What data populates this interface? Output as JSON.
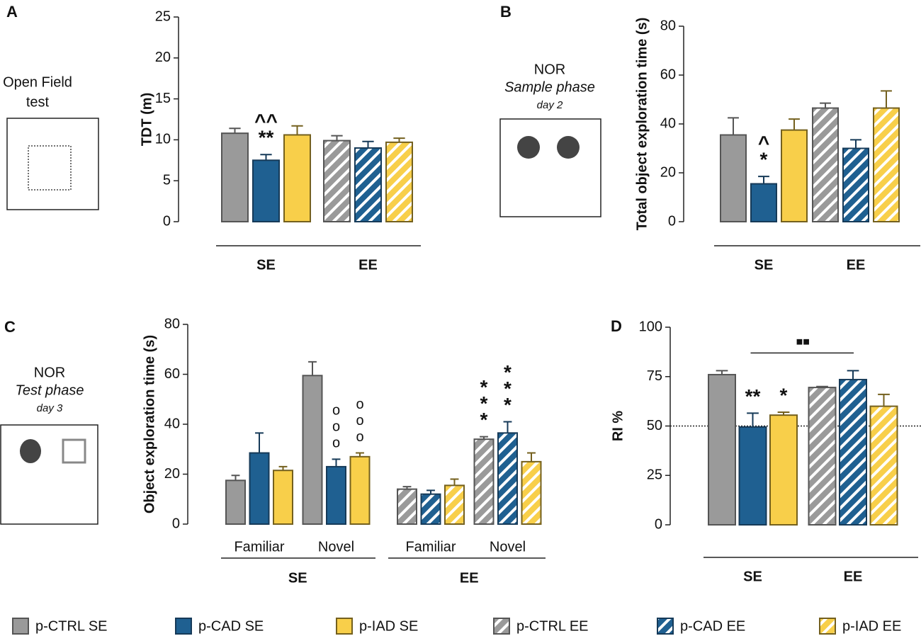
{
  "chart_data": [
    {
      "type": "bar",
      "panel": "A",
      "ylabel": "TDT (m)",
      "ylim": [
        0,
        25
      ],
      "yticks": [
        0,
        5,
        10,
        15,
        20,
        25
      ],
      "categories": [
        "SE",
        "EE"
      ],
      "series": [
        {
          "values": [
            10.8,
            null
          ],
          "errors": [
            0.6,
            null
          ]
        },
        {
          "values": [
            7.5,
            null
          ],
          "errors": [
            0.7,
            null
          ]
        },
        {
          "values": [
            10.6,
            null
          ],
          "errors": [
            1.1,
            null
          ]
        },
        {
          "values": [
            null,
            9.9
          ],
          "errors": [
            null,
            0.6
          ]
        },
        {
          "values": [
            null,
            9.0
          ],
          "errors": [
            null,
            0.8
          ]
        },
        {
          "values": [
            null,
            9.7
          ],
          "errors": [
            null,
            0.5
          ]
        }
      ],
      "annotations": [
        {
          "lines": [
            "^^",
            "**"
          ],
          "series": 1,
          "category": 0
        }
      ]
    },
    {
      "type": "bar",
      "panel": "B",
      "ylabel": "Total object exploration time (s)",
      "ylim": [
        0,
        80
      ],
      "yticks": [
        0,
        20,
        40,
        60,
        80
      ],
      "categories": [
        "SE",
        "EE"
      ],
      "series": [
        {
          "values": [
            35.5,
            null
          ],
          "errors": [
            7,
            null
          ]
        },
        {
          "values": [
            15.5,
            null
          ],
          "errors": [
            3,
            null
          ]
        },
        {
          "values": [
            37.5,
            null
          ],
          "errors": [
            4.5,
            null
          ]
        },
        {
          "values": [
            null,
            46.5
          ],
          "errors": [
            null,
            2
          ]
        },
        {
          "values": [
            null,
            30
          ],
          "errors": [
            null,
            3.5
          ]
        },
        {
          "values": [
            null,
            46.5
          ],
          "errors": [
            null,
            7
          ]
        }
      ],
      "annotations": [
        {
          "lines": [
            "^",
            "*"
          ],
          "series": 1,
          "category": 0
        }
      ]
    },
    {
      "type": "bar",
      "panel": "C",
      "ylabel": "Object exploration time (s)",
      "ylim": [
        0,
        80
      ],
      "yticks": [
        0,
        20,
        40,
        60,
        80
      ],
      "categories": [
        "Familiar",
        "Novel",
        "Familiar",
        "Novel"
      ],
      "groups": [
        "SE",
        "EE"
      ],
      "series": [
        {
          "values": [
            17.5,
            59.5,
            null,
            null
          ],
          "errors": [
            2,
            5.5,
            null,
            null
          ]
        },
        {
          "values": [
            28.5,
            23,
            null,
            null
          ],
          "errors": [
            8,
            3,
            null,
            null
          ]
        },
        {
          "values": [
            21.5,
            27,
            null,
            null
          ],
          "errors": [
            1.5,
            1.5,
            null,
            null
          ]
        },
        {
          "values": [
            null,
            null,
            14,
            34
          ],
          "errors": [
            null,
            null,
            1,
            1
          ]
        },
        {
          "values": [
            null,
            null,
            12,
            36.5
          ],
          "errors": [
            null,
            null,
            1.5,
            4.5
          ]
        },
        {
          "values": [
            null,
            null,
            15.5,
            25
          ],
          "errors": [
            null,
            null,
            2.5,
            3.5
          ]
        }
      ],
      "annotations": [
        {
          "lines": [
            "o",
            "o",
            "o"
          ],
          "series": 1,
          "category": 1
        },
        {
          "lines": [
            "o",
            "o",
            "o"
          ],
          "series": 2,
          "category": 1
        },
        {
          "lines": [
            "*",
            "*",
            "*"
          ],
          "series": 3,
          "category": 3
        },
        {
          "lines": [
            "*",
            "*",
            "*"
          ],
          "series": 4,
          "category": 3
        }
      ]
    },
    {
      "type": "bar",
      "panel": "D",
      "ylabel": "RI %",
      "ylim": [
        0,
        100
      ],
      "yticks": [
        0,
        25,
        50,
        75,
        100
      ],
      "refline": 50,
      "categories": [
        "SE",
        "EE"
      ],
      "series": [
        {
          "values": [
            76,
            null
          ],
          "errors": [
            2,
            null
          ]
        },
        {
          "values": [
            49.5,
            null
          ],
          "errors": [
            7,
            null
          ]
        },
        {
          "values": [
            55.5,
            null
          ],
          "errors": [
            1.5,
            null
          ]
        },
        {
          "values": [
            null,
            69.5
          ],
          "errors": [
            null,
            0.5
          ]
        },
        {
          "values": [
            null,
            73.5
          ],
          "errors": [
            null,
            4.5
          ]
        },
        {
          "values": [
            null,
            60
          ],
          "errors": [
            null,
            6
          ]
        }
      ],
      "annotations": [
        {
          "lines": [
            "**"
          ],
          "series": 1,
          "category": 0
        },
        {
          "lines": [
            "*"
          ],
          "series": 2,
          "category": 0
        }
      ],
      "bracket": {
        "text": "■■",
        "from": {
          "series": 1,
          "category": 0
        },
        "to": {
          "series": 4,
          "category": 1
        }
      }
    }
  ],
  "legend": [
    {
      "name": "p-CTRL SE",
      "color": "#9a9a9a",
      "edgecolor": "#555555",
      "hatch": false
    },
    {
      "name": "p-CAD SE",
      "color": "#1f6091",
      "edgecolor": "#163a58",
      "hatch": false
    },
    {
      "name": "p-IAD SE",
      "color": "#f8cf4a",
      "edgecolor": "#74601e",
      "hatch": false
    },
    {
      "name": "p-CTRL EE",
      "color": "#9a9a9a",
      "edgecolor": "#555555",
      "hatch": true
    },
    {
      "name": "p-CAD EE",
      "color": "#1f6091",
      "edgecolor": "#163a58",
      "hatch": true
    },
    {
      "name": "p-IAD EE",
      "color": "#f8cf4a",
      "edgecolor": "#74601e",
      "hatch": true
    }
  ],
  "illustrations": [
    [
      "Open Field",
      "test"
    ],
    [
      "NOR",
      "Sample phase",
      "day 2"
    ],
    [
      "NOR",
      "Test phase",
      "day 3"
    ]
  ]
}
